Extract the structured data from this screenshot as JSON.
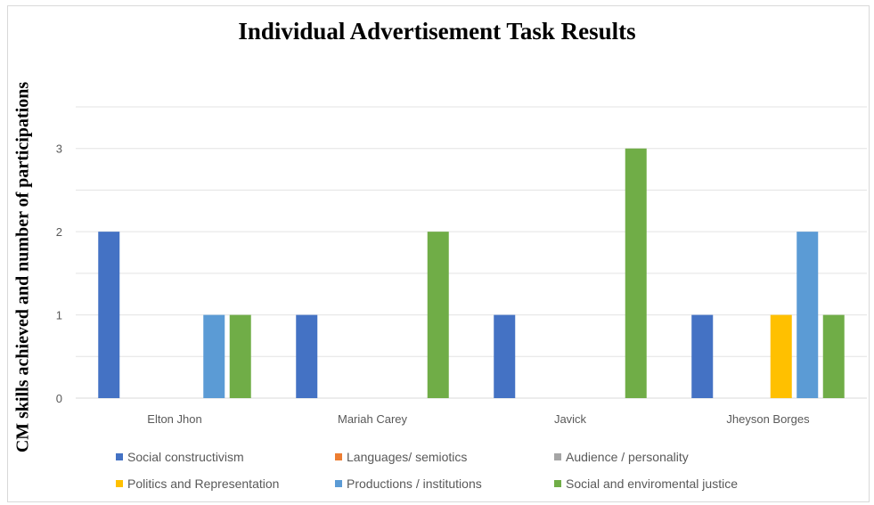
{
  "chart_data": {
    "type": "bar",
    "title": "Individual Advertisement Task Results",
    "xlabel": "",
    "ylabel": "CM skills achieved and number of participations",
    "ylim": [
      0,
      3
    ],
    "yticks": [
      0,
      1,
      2,
      3
    ],
    "grid": true,
    "legend_position": "bottom",
    "categories": [
      "Elton Jhon",
      "Mariah Carey",
      "Javick",
      "Jheyson Borges"
    ],
    "series": [
      {
        "name": "Social constructivism",
        "color": "#4472c4",
        "values": [
          2,
          1,
          1,
          1
        ]
      },
      {
        "name": "Languages/ semiotics",
        "color": "#ed7d31",
        "values": [
          0,
          0,
          0,
          0
        ]
      },
      {
        "name": "Audience / personality",
        "color": "#a5a5a5",
        "values": [
          0,
          0,
          0,
          0
        ]
      },
      {
        "name": "Politics and Representation",
        "color": "#ffc000",
        "values": [
          0,
          0,
          0,
          1
        ]
      },
      {
        "name": "Productions / institutions",
        "color": "#5b9bd5",
        "values": [
          1,
          0,
          0,
          2
        ]
      },
      {
        "name": "Social and enviromental justice",
        "color": "#70ad47",
        "values": [
          1,
          2,
          3,
          1
        ]
      }
    ]
  }
}
